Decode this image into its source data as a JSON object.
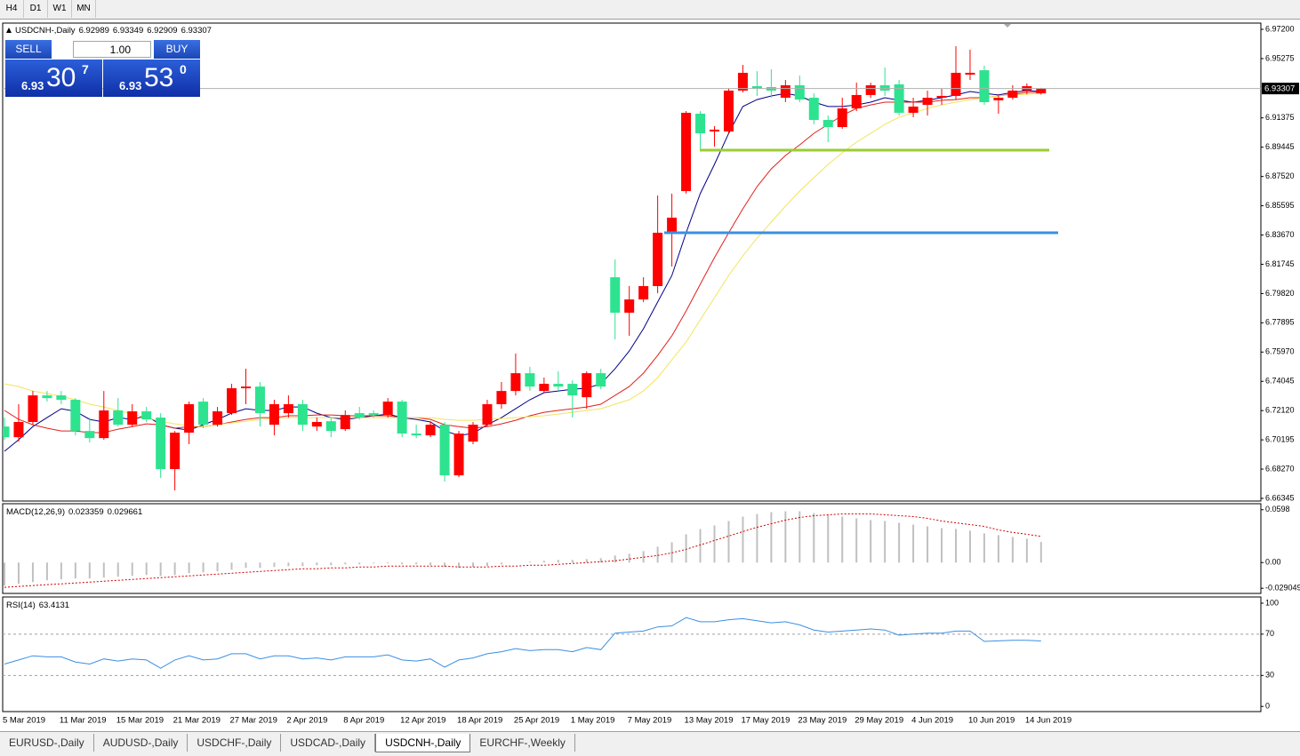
{
  "toolbar": {
    "timeframes": [
      "H4",
      "D1",
      "W1",
      "MN"
    ]
  },
  "trade_panel": {
    "sell": "SELL",
    "buy": "BUY",
    "lot": "1.00",
    "bid": {
      "big_figure": 6.93,
      "pips": 30,
      "point": 7
    },
    "ask": {
      "big_figure": 6.93,
      "pips": 53,
      "point": 0
    }
  },
  "tabs": [
    "EURUSD-,Daily",
    "AUDUSD-,Daily",
    "USDCHF-,Daily",
    "USDCAD-,Daily",
    "USDCNH-,Daily",
    "EURCHF-,Weekly"
  ],
  "chart_data": [
    {
      "type": "candlestick",
      "title": "USDCNH-,Daily",
      "up_color": "#ff0000",
      "down_color": "#2de38f",
      "categories": [
        "5 Mar 2019",
        null,
        null,
        null,
        "11 Mar 2019",
        null,
        null,
        null,
        "15 Mar 2019",
        null,
        null,
        null,
        "21 Mar 2019",
        null,
        null,
        null,
        "27 Mar 2019",
        null,
        null,
        null,
        "2 Apr 2019",
        null,
        null,
        null,
        "8 Apr 2019",
        null,
        null,
        null,
        "12 Apr 2019",
        null,
        null,
        null,
        "18 Apr 2019",
        null,
        null,
        null,
        "25 Apr 2019",
        null,
        null,
        null,
        "1 May 2019",
        null,
        null,
        null,
        "7 May 2019",
        null,
        null,
        null,
        "13 May 2019",
        null,
        null,
        null,
        "17 May 2019",
        null,
        null,
        null,
        "23 May 2019",
        null,
        null,
        null,
        "29 May 2019",
        null,
        null,
        null,
        "4 Jun 2019",
        null,
        null,
        null,
        "10 Jun 2019",
        null,
        null,
        null,
        "14 Jun 2019",
        null
      ],
      "open": [
        6.7107,
        6.7037,
        6.7137,
        6.7312,
        6.7312,
        6.7283,
        6.7078,
        6.7031,
        6.7213,
        6.7119,
        6.7207,
        6.7166,
        6.6827,
        6.7067,
        6.7271,
        6.7119,
        6.7195,
        6.7359,
        6.737,
        6.7119,
        6.7195,
        6.7254,
        6.7107,
        6.7142,
        6.709,
        6.7195,
        6.7195,
        6.7183,
        6.7271,
        6.7061,
        6.7049,
        6.7119,
        6.6786,
        6.7008,
        6.7119,
        6.7254,
        6.7341,
        6.7458,
        6.7341,
        6.7388,
        6.7388,
        6.73,
        6.7458,
        6.8089,
        6.7856,
        6.7943,
        6.8031,
        6.8382,
        6.8656,
        6.9165,
        6.9048,
        6.9048,
        6.9317,
        6.9346,
        6.934,
        6.927,
        6.9352,
        6.927,
        6.9124,
        6.9077,
        6.92,
        6.9288,
        6.9352,
        6.9358,
        6.9171,
        6.9223,
        6.927,
        6.9282,
        6.9422,
        6.9451,
        6.9253,
        6.927,
        6.9317,
        6.92989
      ],
      "high": [
        6.7166,
        6.7254,
        6.7341,
        6.7341,
        6.7341,
        6.7294,
        6.7166,
        6.7341,
        6.7294,
        6.7254,
        6.7236,
        6.7195,
        6.7078,
        6.7271,
        6.7294,
        6.7236,
        6.7388,
        6.7487,
        6.74,
        6.7283,
        6.7312,
        6.7283,
        6.7166,
        6.7166,
        6.7213,
        6.7236,
        6.7213,
        6.7294,
        6.7283,
        6.7119,
        6.7142,
        6.7137,
        6.7078,
        6.7137,
        6.7283,
        6.74,
        6.7587,
        6.7499,
        6.7429,
        6.747,
        6.7411,
        6.747,
        6.7487,
        6.8206,
        6.8031,
        6.8089,
        6.8627,
        6.8639,
        6.9182,
        6.9182,
        6.9083,
        6.9329,
        6.9486,
        6.9445,
        6.9457,
        6.9387,
        6.9416,
        6.9299,
        6.9153,
        6.927,
        6.9369,
        6.9369,
        6.9469,
        6.9387,
        6.927,
        6.9317,
        6.9329,
        6.9609,
        6.9586,
        6.9481,
        6.9293,
        6.9352,
        6.9364,
        6.93349
      ],
      "low": [
        6.702,
        6.7008,
        6.7119,
        6.7271,
        6.7254,
        6.7049,
        6.7002,
        6.702,
        6.7107,
        6.7107,
        6.7137,
        6.6768,
        6.6687,
        6.6991,
        6.7096,
        6.7107,
        6.7183,
        6.7254,
        6.7107,
        6.7049,
        6.7166,
        6.7078,
        6.7078,
        6.7037,
        6.7078,
        6.7154,
        6.7166,
        6.7166,
        6.7037,
        6.7031,
        6.7037,
        6.6745,
        6.6774,
        6.6991,
        6.7107,
        6.7224,
        6.7312,
        6.7341,
        6.733,
        6.7341,
        6.7166,
        6.7224,
        6.7353,
        6.768,
        6.7704,
        6.7926,
        6.7984,
        6.816,
        6.8639,
        6.8931,
        6.8949,
        6.9036,
        6.9305,
        6.9282,
        6.927,
        6.9241,
        6.9241,
        6.9095,
        6.8978,
        6.9066,
        6.9182,
        6.927,
        6.9282,
        6.9153,
        6.9142,
        6.9153,
        6.9223,
        6.9258,
        6.9387,
        6.9223,
        6.9165,
        6.9258,
        6.9293,
        6.92909
      ],
      "close": [
        6.7037,
        6.7137,
        6.7312,
        6.7294,
        6.7283,
        6.7078,
        6.7031,
        6.7213,
        6.7119,
        6.7207,
        6.7154,
        6.6827,
        6.7067,
        6.7254,
        6.7119,
        6.7207,
        6.7359,
        6.737,
        6.7195,
        6.7254,
        6.7254,
        6.7119,
        6.7137,
        6.7078,
        6.7183,
        6.7166,
        6.7183,
        6.7271,
        6.7061,
        6.7049,
        6.7119,
        6.6786,
        6.7061,
        6.7119,
        6.7254,
        6.7341,
        6.7458,
        6.737,
        6.7388,
        6.737,
        6.7312,
        6.7458,
        6.737,
        6.7856,
        6.7943,
        6.8031,
        6.8382,
        6.8481,
        6.9171,
        6.9036,
        6.906,
        6.9317,
        6.9434,
        6.9329,
        6.9317,
        6.9352,
        6.9258,
        6.9124,
        6.9077,
        6.92,
        6.9288,
        6.9352,
        6.9317,
        6.9171,
        6.9212,
        6.927,
        6.9282,
        6.9434,
        6.9434,
        6.9241,
        6.927,
        6.9317,
        6.9346,
        6.93307
      ],
      "series": [
        {
          "color": "#00008b",
          "values": [
            6.6944,
            6.702,
            6.7107,
            6.7166,
            6.7224,
            6.7207,
            6.7154,
            6.7137,
            6.7166,
            6.7154,
            6.7178,
            6.7119,
            6.7096,
            6.7084,
            6.7119,
            6.7154,
            6.7195,
            6.7224,
            6.7213,
            6.7213,
            6.7236,
            6.7236,
            6.7195,
            6.7166,
            6.7154,
            6.7166,
            6.7178,
            6.7189,
            6.7166,
            6.7154,
            6.7137,
            6.7078,
            6.7049,
            6.7061,
            6.7119,
            6.7166,
            6.7224,
            6.7283,
            6.733,
            6.7341,
            6.7353,
            6.7359,
            6.7388,
            6.7487,
            6.7604,
            6.775,
            6.7926,
            6.8101,
            6.8382,
            6.8639,
            6.8832,
            6.9036,
            6.9212,
            6.9258,
            6.9282,
            6.9299,
            6.9282,
            6.9241,
            6.9212,
            6.9212,
            6.9223,
            6.9241,
            6.927,
            6.9253,
            6.9241,
            6.9253,
            6.927,
            6.9288,
            6.9311,
            6.9299,
            6.9288,
            6.9305,
            6.9317,
            6.9311
          ]
        },
        {
          "color": "#e0201c",
          "values": [
            6.7213,
            6.7154,
            6.7119,
            6.7096,
            6.7078,
            6.7078,
            6.7067,
            6.7067,
            6.709,
            6.7107,
            6.7125,
            6.7119,
            6.7096,
            6.7107,
            6.7107,
            6.7119,
            6.7137,
            6.7154,
            6.7166,
            6.7166,
            6.7178,
            6.7178,
            6.7183,
            6.7183,
            6.7178,
            6.7178,
            6.7178,
            6.7178,
            6.7166,
            6.7166,
            6.7154,
            6.7119,
            6.7107,
            6.7096,
            6.7107,
            6.7125,
            6.7148,
            6.7178,
            6.7201,
            6.7213,
            6.7224,
            6.7236,
            6.7254,
            6.7312,
            6.737,
            6.7458,
            6.7575,
            6.7704,
            6.7867,
            6.8043,
            6.8218,
            6.8382,
            6.8539,
            6.8686,
            6.8802,
            6.889,
            6.896,
            6.9036,
            6.9095,
            6.9153,
            6.92,
            6.9223,
            6.9241,
            6.9241,
            6.9241,
            6.9241,
            6.9253,
            6.9258,
            6.927,
            6.927,
            6.9282,
            6.9293,
            6.9305,
            6.9305
          ]
        },
        {
          "color": "#f2e45c",
          "values": [
            6.7388,
            6.737,
            6.7341,
            6.7324,
            6.7306,
            6.7283,
            6.7254,
            6.7236,
            6.7213,
            6.7189,
            6.7166,
            6.7142,
            6.7125,
            6.7113,
            6.7107,
            6.7119,
            6.7131,
            6.7142,
            6.7154,
            6.716,
            6.7166,
            6.7166,
            6.7166,
            6.7166,
            6.7166,
            6.7166,
            6.7166,
            6.7166,
            6.7166,
            6.7166,
            6.7166,
            6.7154,
            6.7148,
            6.7148,
            6.7154,
            6.716,
            6.7166,
            6.7172,
            6.7178,
            6.7189,
            6.7201,
            6.7213,
            6.7224,
            6.7254,
            6.7283,
            6.7341,
            6.7429,
            6.7546,
            6.7663,
            6.7809,
            6.7955,
            6.8101,
            6.823,
            6.8347,
            6.8452,
            6.8557,
            6.8656,
            6.8744,
            6.8832,
            6.8908,
            6.8978,
            6.9036,
            6.9095,
            6.9142,
            6.9171,
            6.92,
            6.9223,
            6.9241,
            6.9258,
            6.927,
            6.9282,
            6.9288,
            6.9293,
            6.9299
          ]
        }
      ],
      "levels": [
        {
          "value": 6.8925,
          "color": "#9acd32"
        },
        {
          "value": 6.8382,
          "color": "#3b8fe3"
        }
      ],
      "ylim": [
        6.6617,
        6.9761
      ],
      "yticks": [
        {
          "value": 6.972,
          "label": "6.97200"
        },
        {
          "value": 6.95275,
          "label": "6.95275"
        },
        {
          "value": 6.91375,
          "label": "6.91375"
        },
        {
          "value": 6.89445,
          "label": "6.89445"
        },
        {
          "value": 6.8752,
          "label": "6.87520"
        },
        {
          "value": 6.85595,
          "label": "6.85595"
        },
        {
          "value": 6.8367,
          "label": "6.83670"
        },
        {
          "value": 6.81745,
          "label": "6.81745"
        },
        {
          "value": 6.7982,
          "label": "6.79820"
        },
        {
          "value": 6.77895,
          "label": "6.77895"
        },
        {
          "value": 6.7597,
          "label": "6.75970"
        },
        {
          "value": 6.74045,
          "label": "6.74045"
        },
        {
          "value": 6.7212,
          "label": "6.72120"
        },
        {
          "value": 6.70195,
          "label": "6.70195"
        },
        {
          "value": 6.6827,
          "label": "6.68270"
        },
        {
          "value": 6.66345,
          "label": "6.66345"
        }
      ]
    },
    {
      "type": "macd",
      "title": "MACD(12,26,9)",
      "series": [
        {
          "color": "#c0c0c0",
          "values": [
            -0.026,
            -0.024,
            -0.022,
            -0.02,
            -0.019,
            -0.018,
            -0.018,
            -0.017,
            -0.016,
            -0.015,
            -0.014,
            -0.015,
            -0.014,
            -0.012,
            -0.011,
            -0.01,
            -0.008,
            -0.006,
            -0.006,
            -0.005,
            -0.004,
            -0.004,
            -0.003,
            -0.003,
            -0.002,
            -0.002,
            -0.001,
            -0.001,
            -0.002,
            -0.002,
            -0.003,
            -0.005,
            -0.006,
            -0.005,
            -0.004,
            -0.002,
            0.0,
            0.001,
            0.002,
            0.003,
            0.003,
            0.004,
            0.005,
            0.008,
            0.01,
            0.013,
            0.018,
            0.023,
            0.032,
            0.038,
            0.042,
            0.047,
            0.052,
            0.055,
            0.057,
            0.058,
            0.058,
            0.056,
            0.054,
            0.052,
            0.05,
            0.048,
            0.047,
            0.045,
            0.043,
            0.041,
            0.039,
            0.038,
            0.036,
            0.033,
            0.031,
            0.029,
            0.027,
            0.023359
          ]
        },
        {
          "color": "#d00000",
          "values": [
            -0.028,
            -0.027,
            -0.026,
            -0.025,
            -0.024,
            -0.023,
            -0.022,
            -0.021,
            -0.02,
            -0.019,
            -0.018,
            -0.017,
            -0.016,
            -0.015,
            -0.014,
            -0.013,
            -0.012,
            -0.011,
            -0.01,
            -0.009,
            -0.008,
            -0.007,
            -0.007,
            -0.006,
            -0.006,
            -0.005,
            -0.005,
            -0.004,
            -0.004,
            -0.004,
            -0.004,
            -0.004,
            -0.005,
            -0.005,
            -0.005,
            -0.004,
            -0.004,
            -0.003,
            -0.003,
            -0.002,
            -0.001,
            0.0,
            0.001,
            0.002,
            0.004,
            0.006,
            0.008,
            0.011,
            0.015,
            0.02,
            0.025,
            0.03,
            0.035,
            0.04,
            0.044,
            0.048,
            0.051,
            0.053,
            0.054,
            0.055,
            0.055,
            0.055,
            0.054,
            0.053,
            0.052,
            0.05,
            0.047,
            0.045,
            0.043,
            0.041,
            0.037,
            0.034,
            0.032,
            0.029661
          ]
        }
      ],
      "ylim": [
        -0.0349,
        0.0666
      ],
      "yticks": [
        0.0598,
        {
          "value": 0,
          "label": "0.00"
        },
        -0.029049
      ]
    },
    {
      "type": "line",
      "title": "RSI(14)",
      "color": "#3b8fe3",
      "values": [
        41,
        45,
        49,
        48,
        48,
        43,
        41,
        46,
        44,
        46,
        45,
        37,
        45,
        49,
        45,
        46,
        51,
        51,
        46,
        49,
        49,
        46,
        47,
        45,
        48,
        48,
        48,
        50,
        45,
        44,
        46,
        38,
        45,
        47,
        51,
        53,
        56,
        54,
        55,
        55,
        53,
        57,
        55,
        71,
        72,
        73,
        77,
        78,
        86,
        82,
        82,
        84,
        85,
        83,
        81,
        82,
        79,
        74,
        72,
        73,
        74,
        75,
        74,
        69,
        70,
        71,
        71,
        73,
        73,
        63,
        63.5,
        64,
        64,
        63.4131
      ],
      "levels": [
        70,
        30
      ],
      "ylim": [
        -5,
        106
      ],
      "yticks": [
        100,
        70,
        30,
        0
      ]
    }
  ]
}
